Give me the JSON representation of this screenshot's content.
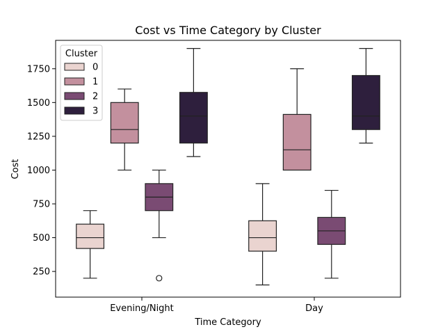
{
  "chart_data": {
    "type": "box",
    "title": "Cost vs Time Category by Cluster",
    "xlabel": "Time Category",
    "ylabel": "Cost",
    "ylim": [
      60,
      1960
    ],
    "y_ticks": [
      250,
      500,
      750,
      1000,
      1250,
      1500,
      1750
    ],
    "categories": [
      "Evening/Night",
      "Day"
    ],
    "legend": {
      "title": "Cluster",
      "placement": "top-left"
    },
    "series": [
      {
        "name": "0",
        "color": "#ead4d0",
        "boxes": [
          {
            "whislo": 200,
            "q1": 420,
            "med": 500,
            "q3": 600,
            "whishi": 700,
            "fliers": []
          },
          {
            "whislo": 150,
            "q1": 400,
            "med": 500,
            "q3": 625,
            "whishi": 900,
            "fliers": []
          }
        ]
      },
      {
        "name": "1",
        "color": "#c3909e",
        "boxes": [
          {
            "whislo": 1000,
            "q1": 1200,
            "med": 1300,
            "q3": 1500,
            "whishi": 1600,
            "fliers": []
          },
          {
            "whislo": 1000,
            "q1": 1000,
            "med": 1150,
            "q3": 1412,
            "whishi": 1750,
            "fliers": []
          }
        ]
      },
      {
        "name": "2",
        "color": "#7a4b73",
        "boxes": [
          {
            "whislo": 500,
            "q1": 700,
            "med": 800,
            "q3": 900,
            "whishi": 1000,
            "fliers": [
              200
            ]
          },
          {
            "whislo": 200,
            "q1": 450,
            "med": 550,
            "q3": 650,
            "whishi": 850,
            "fliers": []
          }
        ]
      },
      {
        "name": "3",
        "color": "#2e1f3d",
        "boxes": [
          {
            "whislo": 1100,
            "q1": 1200,
            "med": 1400,
            "q3": 1575,
            "whishi": 1900,
            "fliers": []
          },
          {
            "whislo": 1200,
            "q1": 1300,
            "med": 1400,
            "q3": 1700,
            "whishi": 1900,
            "fliers": []
          }
        ]
      }
    ]
  }
}
